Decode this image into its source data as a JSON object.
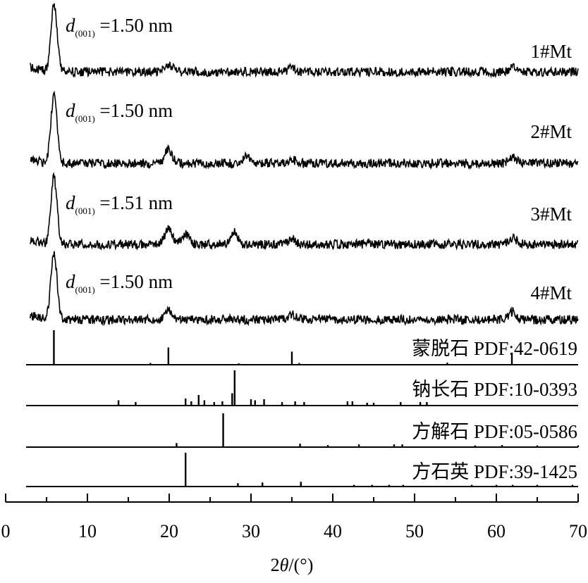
{
  "chart_data": {
    "type": "line",
    "xlabel": {
      "prefix": "2",
      "theta": "θ",
      "suffix": "/(°)"
    },
    "xlim": [
      0,
      70
    ],
    "x_ticks": [
      "0",
      "10",
      "20",
      "30",
      "40",
      "50",
      "60",
      "70"
    ],
    "grid": false,
    "legend": "none",
    "series": [
      {
        "name": "1#Mt",
        "d_label": {
          "d": "d",
          "sub": "(001)",
          "value": "=1.50 nm"
        },
        "peaks": [
          [
            5.9,
            1.0
          ],
          [
            19.9,
            0.12
          ],
          [
            35.0,
            0.06
          ],
          [
            62.0,
            0.06
          ]
        ]
      },
      {
        "name": "2#Mt",
        "d_label": {
          "d": "d",
          "sub": "(001)",
          "value": "=1.50 nm"
        },
        "peaks": [
          [
            5.9,
            1.0
          ],
          [
            19.9,
            0.2
          ],
          [
            29.5,
            0.12
          ],
          [
            35.0,
            0.06
          ],
          [
            62.0,
            0.08
          ]
        ]
      },
      {
        "name": "3#Mt",
        "d_label": {
          "d": "d",
          "sub": "(001)",
          "value": "=1.51 nm"
        },
        "peaks": [
          [
            5.9,
            1.0
          ],
          [
            19.9,
            0.22
          ],
          [
            22.0,
            0.15
          ],
          [
            27.9,
            0.18
          ],
          [
            35.0,
            0.08
          ],
          [
            62.0,
            0.1
          ]
        ]
      },
      {
        "name": "4#Mt",
        "d_label": {
          "d": "d",
          "sub": "(001)",
          "value": "=1.50 nm"
        },
        "peaks": [
          [
            5.9,
            1.0
          ],
          [
            19.9,
            0.15
          ],
          [
            35.0,
            0.08
          ],
          [
            62.0,
            0.12
          ]
        ]
      }
    ],
    "references": [
      {
        "name": "蒙脱石",
        "pdf": "PDF:42-0619",
        "lines": [
          [
            5.9,
            1.0
          ],
          [
            17.7,
            0.05
          ],
          [
            19.9,
            0.5
          ],
          [
            28.5,
            0.04
          ],
          [
            35.0,
            0.38
          ],
          [
            35.9,
            0.05
          ],
          [
            54.0,
            0.06
          ],
          [
            61.9,
            0.35
          ]
        ]
      },
      {
        "name": "钠长石",
        "pdf": "PDF:10-0393",
        "lines": [
          [
            13.8,
            0.15
          ],
          [
            15.9,
            0.1
          ],
          [
            22.0,
            0.2
          ],
          [
            22.7,
            0.12
          ],
          [
            23.6,
            0.3
          ],
          [
            24.3,
            0.15
          ],
          [
            25.5,
            0.1
          ],
          [
            26.5,
            0.12
          ],
          [
            27.7,
            0.35
          ],
          [
            28.0,
            1.0
          ],
          [
            30.0,
            0.18
          ],
          [
            30.5,
            0.15
          ],
          [
            31.6,
            0.18
          ],
          [
            33.8,
            0.1
          ],
          [
            35.4,
            0.12
          ],
          [
            36.5,
            0.1
          ],
          [
            41.8,
            0.12
          ],
          [
            42.4,
            0.12
          ],
          [
            44.2,
            0.08
          ],
          [
            45.0,
            0.08
          ],
          [
            48.3,
            0.1
          ],
          [
            50.7,
            0.1
          ],
          [
            51.5,
            0.1
          ]
        ]
      },
      {
        "name": "方解石",
        "pdf": "PDF:05-0586",
        "lines": [
          [
            20.9,
            0.12
          ],
          [
            26.6,
            1.0
          ],
          [
            36.0,
            0.1
          ],
          [
            39.4,
            0.06
          ],
          [
            43.2,
            0.08
          ],
          [
            47.5,
            0.08
          ],
          [
            48.5,
            0.08
          ],
          [
            57.4,
            0.05
          ],
          [
            60.7,
            0.06
          ],
          [
            65.0,
            0.05
          ],
          [
            70.0,
            0.05
          ]
        ]
      },
      {
        "name": "方石英",
        "pdf": "PDF:39-1425",
        "lines": [
          [
            22.0,
            1.0
          ],
          [
            28.4,
            0.1
          ],
          [
            31.4,
            0.12
          ],
          [
            36.1,
            0.14
          ],
          [
            42.6,
            0.05
          ],
          [
            44.8,
            0.05
          ],
          [
            46.9,
            0.05
          ],
          [
            48.6,
            0.05
          ],
          [
            57.0,
            0.05
          ],
          [
            60.0,
            0.05
          ],
          [
            62.0,
            0.05
          ],
          [
            65.0,
            0.05
          ],
          [
            69.3,
            0.05
          ]
        ]
      }
    ]
  }
}
